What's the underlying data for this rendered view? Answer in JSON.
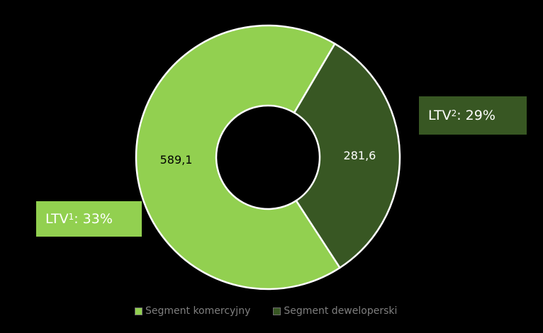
{
  "chart_data": {
    "type": "pie",
    "categories": [
      "Segment komercyjny",
      "Segment deweloperski"
    ],
    "values": [
      589.1,
      281.6
    ],
    "value_labels": [
      "589,1",
      "281,6"
    ],
    "colors": [
      "#92d050",
      "#385723"
    ],
    "legend_position": "bottom",
    "donut": true
  },
  "legend": {
    "items": [
      {
        "label": "Segment komercyjny",
        "color": "#92d050"
      },
      {
        "label": "Segment deweloperski",
        "color": "#385723"
      }
    ]
  },
  "ltv_boxes": [
    {
      "prefix": "LTV ",
      "sup": "1",
      "suffix": ": 33%",
      "color": "#92d050"
    },
    {
      "prefix": "LTV ",
      "sup": "2",
      "suffix": ": 29%",
      "color": "#385723"
    }
  ]
}
